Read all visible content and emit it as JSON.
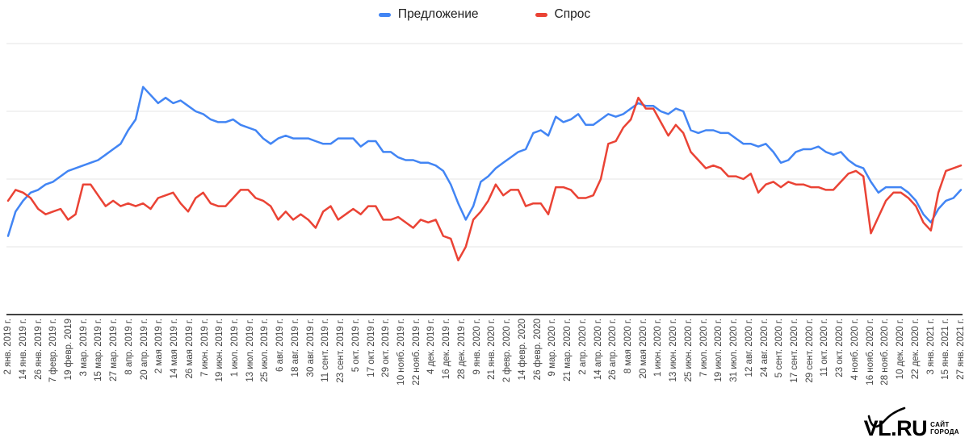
{
  "legend": {
    "items": [
      {
        "label": "Предложение",
        "color": "#4285f4"
      },
      {
        "label": "Спрос",
        "color": "#ea4335"
      }
    ]
  },
  "watermark": {
    "brand": "VL.RU",
    "tagline_line1": "САЙТ",
    "tagline_line2": "ГОРОДА",
    "checkmark_icon_color": "#000000"
  },
  "chart_data": {
    "type": "line",
    "title": "",
    "xlabel": "",
    "ylabel": "",
    "legend_position": "top-center",
    "grid": "horizontal",
    "grid_y_values": [
      0,
      25,
      50,
      75,
      100
    ],
    "ylim": [
      0,
      100
    ],
    "y_axis_labels_visible": false,
    "value_scale": "relative 0-100 (no numeric y labels shown in image)",
    "axis_color": "#424242",
    "gridline_color": "#e6e6e6",
    "tick_label_color": "#444444",
    "x_tick_labels": [
      "2 янв. 2019 г.",
      "14 янв. 2019 г.",
      "26 янв. 2019 г.",
      "7 февр. 2019 г.",
      "19 февр. 2019",
      "3 мар. 2019 г.",
      "15 мар. 2019 г.",
      "27 мар. 2019 г.",
      "8 апр. 2019 г.",
      "20 апр. 2019 г.",
      "2 мая 2019 г.",
      "14 мая 2019 г.",
      "26 мая 2019 г.",
      "7 июн. 2019 г.",
      "19 июн. 2019 г.",
      "1 июл. 2019 г.",
      "13 июл. 2019 г.",
      "25 июл. 2019 г.",
      "6 авг. 2019 г.",
      "18 авг. 2019 г.",
      "30 авг. 2019 г.",
      "11 сент. 2019 г.",
      "23 сент. 2019 г.",
      "5 окт. 2019 г.",
      "17 окт. 2019 г.",
      "29 окт. 2019 г.",
      "10 нояб. 2019 г.",
      "22 нояб. 2019 г.",
      "4 дек. 2019 г.",
      "16 дек. 2019 г.",
      "28 дек. 2019 г.",
      "9 янв. 2020 г.",
      "21 янв. 2020 г.",
      "2 февр. 2020 г.",
      "14 февр. 2020",
      "26 февр. 2020",
      "9 мар. 2020 г.",
      "21 мар. 2020 г.",
      "2 апр. 2020 г.",
      "14 апр. 2020 г.",
      "26 апр. 2020 г.",
      "8 мая 2020 г.",
      "20 мая 2020 г.",
      "1 июн. 2020 г.",
      "13 июн. 2020 г.",
      "25 июн. 2020 г.",
      "7 июл. 2020 г.",
      "19 июл. 2020 г.",
      "31 июл. 2020 г.",
      "12 авг. 2020 г.",
      "24 авг. 2020 г.",
      "5 сент. 2020 г.",
      "17 сент. 2020 г.",
      "29 сент. 2020 г.",
      "11 окт. 2020 г.",
      "23 окт. 2020 г.",
      "4 нояб. 2020 г.",
      "16 нояб. 2020 г.",
      "28 нояб. 2020 г.",
      "10 дек. 2020 г.",
      "22 дек. 2020 г.",
      "3 янв. 2021 г.",
      "15 янв. 2021 г.",
      "27 янв. 2021 г."
    ],
    "samples_note": "128 evenly spaced samples per series across the full date range",
    "series": [
      {
        "name": "Предложение",
        "color": "#4285f4",
        "values": [
          29,
          38,
          42,
          45,
          46,
          48,
          49,
          51,
          53,
          54,
          55,
          56,
          57,
          59,
          61,
          63,
          68,
          72,
          84,
          81,
          78,
          80,
          78,
          79,
          77,
          75,
          74,
          72,
          71,
          71,
          72,
          70,
          69,
          68,
          65,
          63,
          65,
          66,
          65,
          65,
          65,
          64,
          63,
          63,
          65,
          65,
          65,
          62,
          64,
          64,
          60,
          60,
          58,
          57,
          57,
          56,
          56,
          55,
          53,
          48,
          41,
          35,
          40,
          49,
          51,
          54,
          56,
          58,
          60,
          61,
          67,
          68,
          66,
          73,
          71,
          72,
          74,
          70,
          70,
          72,
          74,
          73,
          74,
          76,
          78,
          77,
          77,
          75,
          74,
          76,
          75,
          68,
          67,
          68,
          68,
          67,
          67,
          65,
          63,
          63,
          62,
          63,
          60,
          56,
          57,
          60,
          61,
          61,
          62,
          60,
          59,
          60,
          57,
          55,
          54,
          49,
          45,
          47,
          47,
          47,
          45,
          42,
          37,
          34,
          39,
          42,
          43,
          46
        ]
      },
      {
        "name": "Спрос",
        "color": "#ea4335",
        "values": [
          42,
          46,
          45,
          43,
          39,
          37,
          38,
          39,
          35,
          37,
          48,
          48,
          44,
          40,
          42,
          40,
          41,
          40,
          41,
          39,
          43,
          44,
          45,
          41,
          38,
          43,
          45,
          41,
          40,
          40,
          43,
          46,
          46,
          43,
          42,
          40,
          35,
          38,
          35,
          37,
          35,
          32,
          38,
          40,
          35,
          37,
          39,
          37,
          40,
          40,
          35,
          35,
          36,
          34,
          32,
          35,
          34,
          35,
          29,
          28,
          20,
          25,
          35,
          38,
          42,
          48,
          44,
          46,
          46,
          40,
          41,
          41,
          37,
          47,
          47,
          46,
          43,
          43,
          44,
          50,
          63,
          64,
          69,
          72,
          80,
          76,
          76,
          71,
          66,
          70,
          67,
          60,
          57,
          54,
          55,
          54,
          51,
          51,
          50,
          52,
          45,
          48,
          49,
          47,
          49,
          48,
          48,
          47,
          47,
          46,
          46,
          49,
          52,
          53,
          51,
          30,
          36,
          42,
          45,
          45,
          43,
          40,
          34,
          31,
          45,
          53,
          54,
          55
        ]
      }
    ]
  }
}
